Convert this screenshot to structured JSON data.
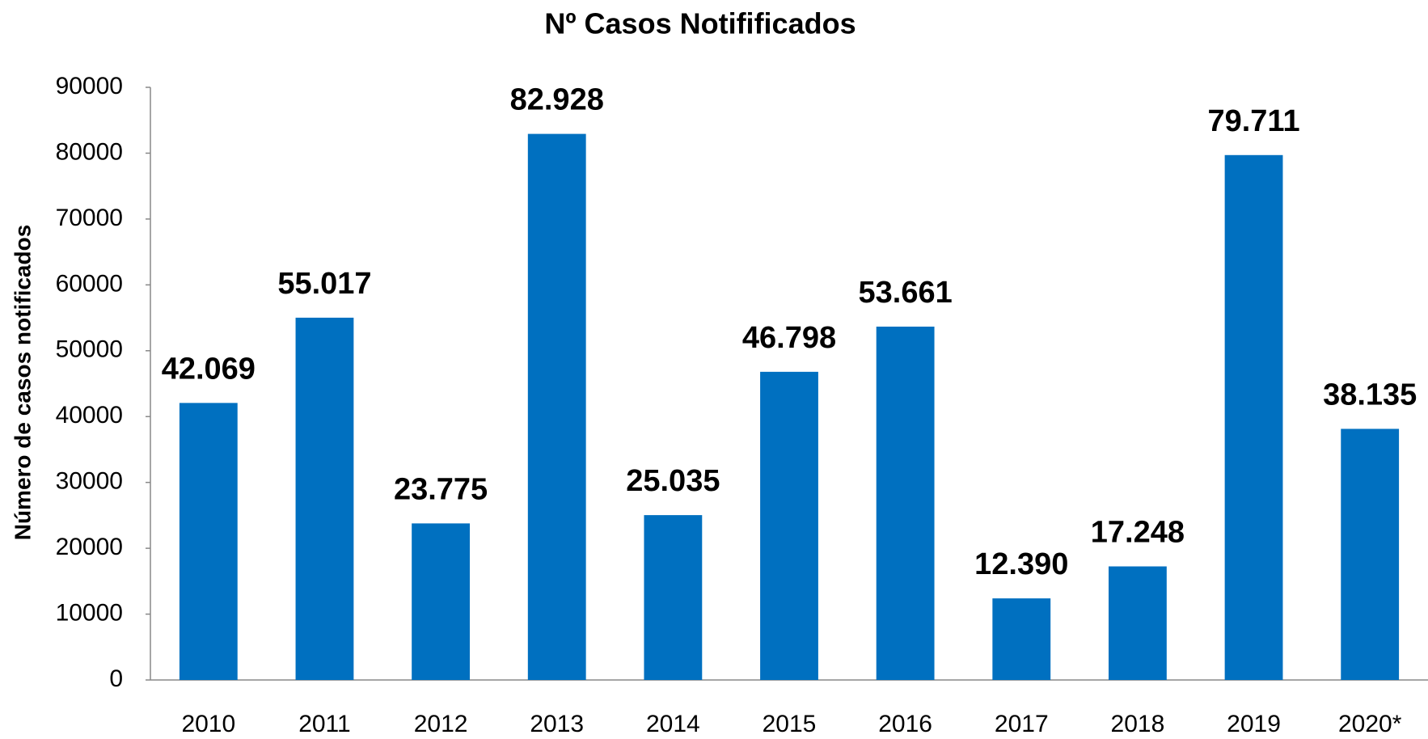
{
  "chart_data": {
    "type": "bar",
    "title": "Nº Casos Notifificados",
    "ylabel": "Número de casos notificados",
    "categories": [
      "2010",
      "2011",
      "2012",
      "2013",
      "2014",
      "2015",
      "2016",
      "2017",
      "2018",
      "2019",
      "2020*"
    ],
    "values": [
      42069,
      55017,
      23775,
      82928,
      25035,
      46798,
      53661,
      12390,
      17248,
      79711,
      38135
    ],
    "value_labels": [
      "42.069",
      "55.017",
      "23.775",
      "82.928",
      "25.035",
      "46.798",
      "53.661",
      "12.390",
      "17.248",
      "79.711",
      "38.135"
    ],
    "color": "#0070c0",
    "ylim": [
      0,
      90000
    ],
    "yticks": [
      0,
      10000,
      20000,
      30000,
      40000,
      50000,
      60000,
      70000,
      80000,
      90000
    ],
    "grid": false
  }
}
